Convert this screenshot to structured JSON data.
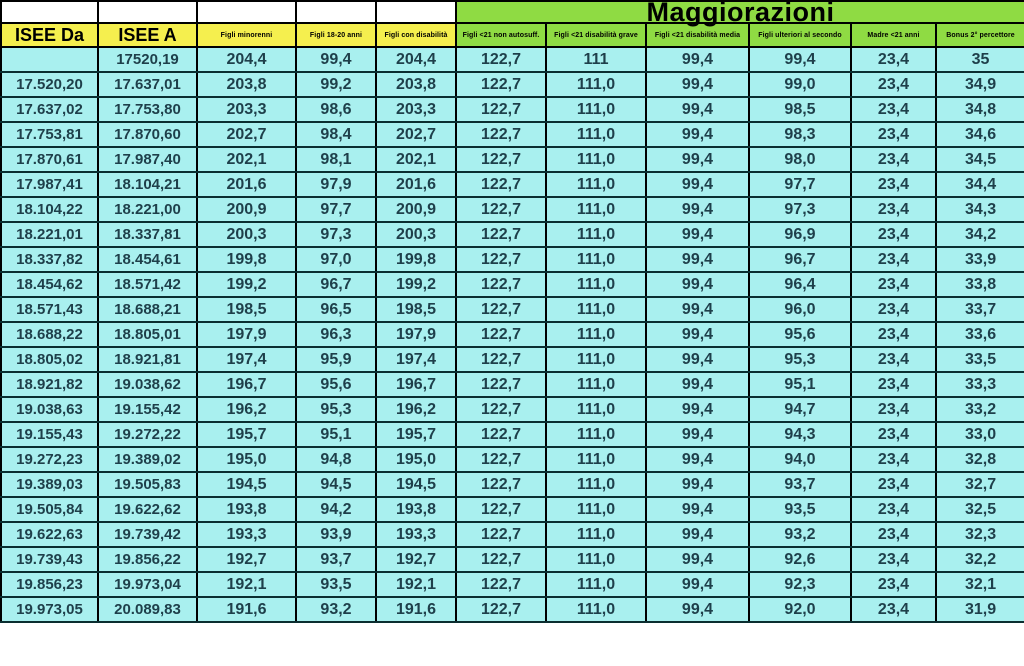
{
  "colors": {
    "yellow": "#f5ef4e",
    "green": "#8fdb43",
    "cyan": "#a9f0ef",
    "border": "#000000",
    "body_text": "#1e3f4a"
  },
  "table": {
    "maggiorazioni_header": "Maggiorazioni",
    "columns": [
      {
        "label": "ISEE Da"
      },
      {
        "label": "ISEE A"
      },
      {
        "label": "Figli minorenni"
      },
      {
        "label": "Figli 18-20 anni"
      },
      {
        "label": "Figli con disabilità"
      },
      {
        "label": "Figli <21 non autosuff."
      },
      {
        "label": "Figli <21 disabilità grave"
      },
      {
        "label": "Figli <21 disabilità media"
      },
      {
        "label": "Figli ulteriori al secondo"
      },
      {
        "label": "Madre <21 anni"
      },
      {
        "label": "Bonus 2° percettore"
      }
    ],
    "rows": [
      [
        "",
        "17520,19",
        "204,4",
        "99,4",
        "204,4",
        "122,7",
        "111",
        "99,4",
        "99,4",
        "23,4",
        "35"
      ],
      [
        "17.520,20",
        "17.637,01",
        "203,8",
        "99,2",
        "203,8",
        "122,7",
        "111,0",
        "99,4",
        "99,0",
        "23,4",
        "34,9"
      ],
      [
        "17.637,02",
        "17.753,80",
        "203,3",
        "98,6",
        "203,3",
        "122,7",
        "111,0",
        "99,4",
        "98,5",
        "23,4",
        "34,8"
      ],
      [
        "17.753,81",
        "17.870,60",
        "202,7",
        "98,4",
        "202,7",
        "122,7",
        "111,0",
        "99,4",
        "98,3",
        "23,4",
        "34,6"
      ],
      [
        "17.870,61",
        "17.987,40",
        "202,1",
        "98,1",
        "202,1",
        "122,7",
        "111,0",
        "99,4",
        "98,0",
        "23,4",
        "34,5"
      ],
      [
        "17.987,41",
        "18.104,21",
        "201,6",
        "97,9",
        "201,6",
        "122,7",
        "111,0",
        "99,4",
        "97,7",
        "23,4",
        "34,4"
      ],
      [
        "18.104,22",
        "18.221,00",
        "200,9",
        "97,7",
        "200,9",
        "122,7",
        "111,0",
        "99,4",
        "97,3",
        "23,4",
        "34,3"
      ],
      [
        "18.221,01",
        "18.337,81",
        "200,3",
        "97,3",
        "200,3",
        "122,7",
        "111,0",
        "99,4",
        "96,9",
        "23,4",
        "34,2"
      ],
      [
        "18.337,82",
        "18.454,61",
        "199,8",
        "97,0",
        "199,8",
        "122,7",
        "111,0",
        "99,4",
        "96,7",
        "23,4",
        "33,9"
      ],
      [
        "18.454,62",
        "18.571,42",
        "199,2",
        "96,7",
        "199,2",
        "122,7",
        "111,0",
        "99,4",
        "96,4",
        "23,4",
        "33,8"
      ],
      [
        "18.571,43",
        "18.688,21",
        "198,5",
        "96,5",
        "198,5",
        "122,7",
        "111,0",
        "99,4",
        "96,0",
        "23,4",
        "33,7"
      ],
      [
        "18.688,22",
        "18.805,01",
        "197,9",
        "96,3",
        "197,9",
        "122,7",
        "111,0",
        "99,4",
        "95,6",
        "23,4",
        "33,6"
      ],
      [
        "18.805,02",
        "18.921,81",
        "197,4",
        "95,9",
        "197,4",
        "122,7",
        "111,0",
        "99,4",
        "95,3",
        "23,4",
        "33,5"
      ],
      [
        "18.921,82",
        "19.038,62",
        "196,7",
        "95,6",
        "196,7",
        "122,7",
        "111,0",
        "99,4",
        "95,1",
        "23,4",
        "33,3"
      ],
      [
        "19.038,63",
        "19.155,42",
        "196,2",
        "95,3",
        "196,2",
        "122,7",
        "111,0",
        "99,4",
        "94,7",
        "23,4",
        "33,2"
      ],
      [
        "19.155,43",
        "19.272,22",
        "195,7",
        "95,1",
        "195,7",
        "122,7",
        "111,0",
        "99,4",
        "94,3",
        "23,4",
        "33,0"
      ],
      [
        "19.272,23",
        "19.389,02",
        "195,0",
        "94,8",
        "195,0",
        "122,7",
        "111,0",
        "99,4",
        "94,0",
        "23,4",
        "32,8"
      ],
      [
        "19.389,03",
        "19.505,83",
        "194,5",
        "94,5",
        "194,5",
        "122,7",
        "111,0",
        "99,4",
        "93,7",
        "23,4",
        "32,7"
      ],
      [
        "19.505,84",
        "19.622,62",
        "193,8",
        "94,2",
        "193,8",
        "122,7",
        "111,0",
        "99,4",
        "93,5",
        "23,4",
        "32,5"
      ],
      [
        "19.622,63",
        "19.739,42",
        "193,3",
        "93,9",
        "193,3",
        "122,7",
        "111,0",
        "99,4",
        "93,2",
        "23,4",
        "32,3"
      ],
      [
        "19.739,43",
        "19.856,22",
        "192,7",
        "93,7",
        "192,7",
        "122,7",
        "111,0",
        "99,4",
        "92,6",
        "23,4",
        "32,2"
      ],
      [
        "19.856,23",
        "19.973,04",
        "192,1",
        "93,5",
        "192,1",
        "122,7",
        "111,0",
        "99,4",
        "92,3",
        "23,4",
        "32,1"
      ],
      [
        "19.973,05",
        "20.089,83",
        "191,6",
        "93,2",
        "191,6",
        "122,7",
        "111,0",
        "99,4",
        "92,0",
        "23,4",
        "31,9"
      ]
    ]
  }
}
